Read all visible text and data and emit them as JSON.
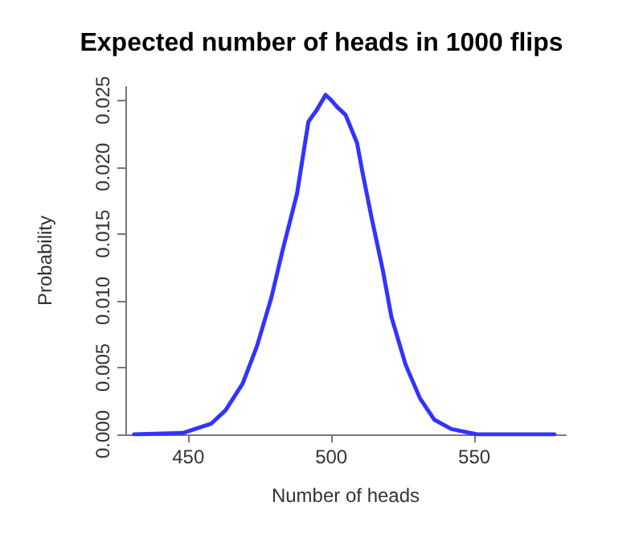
{
  "chart_data": {
    "type": "line",
    "title": "Expected number of heads in 1000 flips",
    "xlabel": "Number of heads",
    "ylabel": "Probability",
    "x": [
      431,
      448,
      458,
      463,
      469,
      474,
      479,
      483,
      488,
      492,
      495,
      498,
      500,
      502,
      505,
      509,
      511,
      514,
      518,
      521,
      526,
      531,
      536,
      542,
      551,
      578
    ],
    "series": [
      {
        "color": "#3333ff",
        "values": [
          0,
          0.0001,
          0.0008,
          0.0018,
          0.0038,
          0.0066,
          0.0102,
          0.0138,
          0.018,
          0.0234,
          0.0243,
          0.0254,
          0.025,
          0.0245,
          0.0239,
          0.0218,
          0.0195,
          0.0163,
          0.0123,
          0.0088,
          0.0052,
          0.0027,
          0.0011,
          0.0004,
          0,
          0
        ]
      }
    ],
    "xlim": [
      428,
      582
    ],
    "xticks": [
      450,
      500,
      550
    ],
    "ylim": [
      0,
      0.026
    ],
    "yticks": [
      {
        "value": 0,
        "label": "0.000"
      },
      0.005,
      {
        "value": 0.01,
        "label": "0.010"
      },
      0.015,
      {
        "value": 0.02,
        "label": "0.020"
      },
      0.025
    ],
    "grid": false,
    "marker": "none",
    "line_style": "solid"
  }
}
